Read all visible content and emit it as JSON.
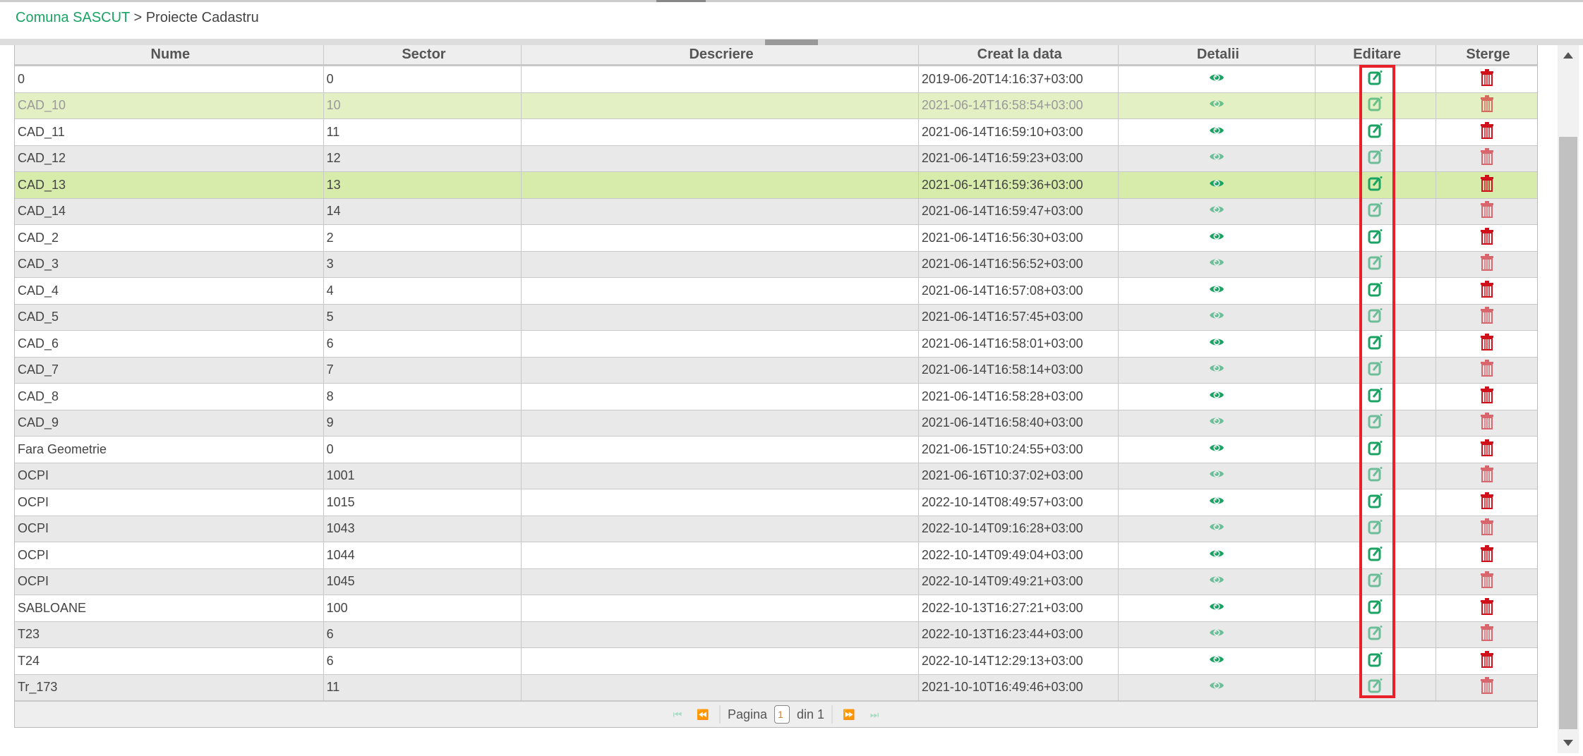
{
  "breadcrumb": {
    "root": "Comuna SASCUT",
    "separator": " > ",
    "current": "Proiecte Cadastru"
  },
  "colors": {
    "accent": "#1aa363",
    "delete": "#d0101a",
    "highlight": "#e8202a",
    "selected_row": "#d7ecaa",
    "hover_row": "#e2f0c4"
  },
  "table": {
    "columns": [
      "Nume",
      "Sector",
      "Descriere",
      "Creat la data",
      "Detalii",
      "Editare",
      "Sterge"
    ],
    "rows": [
      {
        "nume": "0",
        "sector": "0",
        "descriere": "",
        "creat": "2019-06-20T14:16:37+03:00"
      },
      {
        "nume": "CAD_10",
        "sector": "10",
        "descriere": "",
        "creat": "2021-06-14T16:58:54+03:00",
        "state": "hover"
      },
      {
        "nume": "CAD_11",
        "sector": "11",
        "descriere": "",
        "creat": "2021-06-14T16:59:10+03:00"
      },
      {
        "nume": "CAD_12",
        "sector": "12",
        "descriere": "",
        "creat": "2021-06-14T16:59:23+03:00"
      },
      {
        "nume": "CAD_13",
        "sector": "13",
        "descriere": "",
        "creat": "2021-06-14T16:59:36+03:00",
        "state": "selected"
      },
      {
        "nume": "CAD_14",
        "sector": "14",
        "descriere": "",
        "creat": "2021-06-14T16:59:47+03:00"
      },
      {
        "nume": "CAD_2",
        "sector": "2",
        "descriere": "",
        "creat": "2021-06-14T16:56:30+03:00"
      },
      {
        "nume": "CAD_3",
        "sector": "3",
        "descriere": "",
        "creat": "2021-06-14T16:56:52+03:00"
      },
      {
        "nume": "CAD_4",
        "sector": "4",
        "descriere": "",
        "creat": "2021-06-14T16:57:08+03:00"
      },
      {
        "nume": "CAD_5",
        "sector": "5",
        "descriere": "",
        "creat": "2021-06-14T16:57:45+03:00"
      },
      {
        "nume": "CAD_6",
        "sector": "6",
        "descriere": "",
        "creat": "2021-06-14T16:58:01+03:00"
      },
      {
        "nume": "CAD_7",
        "sector": "7",
        "descriere": "",
        "creat": "2021-06-14T16:58:14+03:00"
      },
      {
        "nume": "CAD_8",
        "sector": "8",
        "descriere": "",
        "creat": "2021-06-14T16:58:28+03:00"
      },
      {
        "nume": "CAD_9",
        "sector": "9",
        "descriere": "",
        "creat": "2021-06-14T16:58:40+03:00"
      },
      {
        "nume": "Fara Geometrie",
        "sector": "0",
        "descriere": "",
        "creat": "2021-06-15T10:24:55+03:00"
      },
      {
        "nume": "OCPI",
        "sector": "1001",
        "descriere": "",
        "creat": "2021-06-16T10:37:02+03:00"
      },
      {
        "nume": "OCPI",
        "sector": "1015",
        "descriere": "",
        "creat": "2022-10-14T08:49:57+03:00"
      },
      {
        "nume": "OCPI",
        "sector": "1043",
        "descriere": "",
        "creat": "2022-10-14T09:16:28+03:00"
      },
      {
        "nume": "OCPI",
        "sector": "1044",
        "descriere": "",
        "creat": "2022-10-14T09:49:04+03:00"
      },
      {
        "nume": "OCPI",
        "sector": "1045",
        "descriere": "",
        "creat": "2022-10-14T09:49:21+03:00"
      },
      {
        "nume": "SABLOANE",
        "sector": "100",
        "descriere": "",
        "creat": "2022-10-13T16:27:21+03:00"
      },
      {
        "nume": "T23",
        "sector": "6",
        "descriere": "",
        "creat": "2022-10-13T16:23:44+03:00"
      },
      {
        "nume": "T24",
        "sector": "6",
        "descriere": "",
        "creat": "2022-10-14T12:29:13+03:00"
      },
      {
        "nume": "Tr_173",
        "sector": "11",
        "descriere": "",
        "creat": "2021-10-10T16:49:46+03:00"
      }
    ]
  },
  "pager": {
    "label": "Pagina",
    "page": "1",
    "of_label": "din 1",
    "icons": [
      "first-page-icon",
      "prev-page-icon",
      "next-page-icon",
      "last-page-icon"
    ]
  }
}
